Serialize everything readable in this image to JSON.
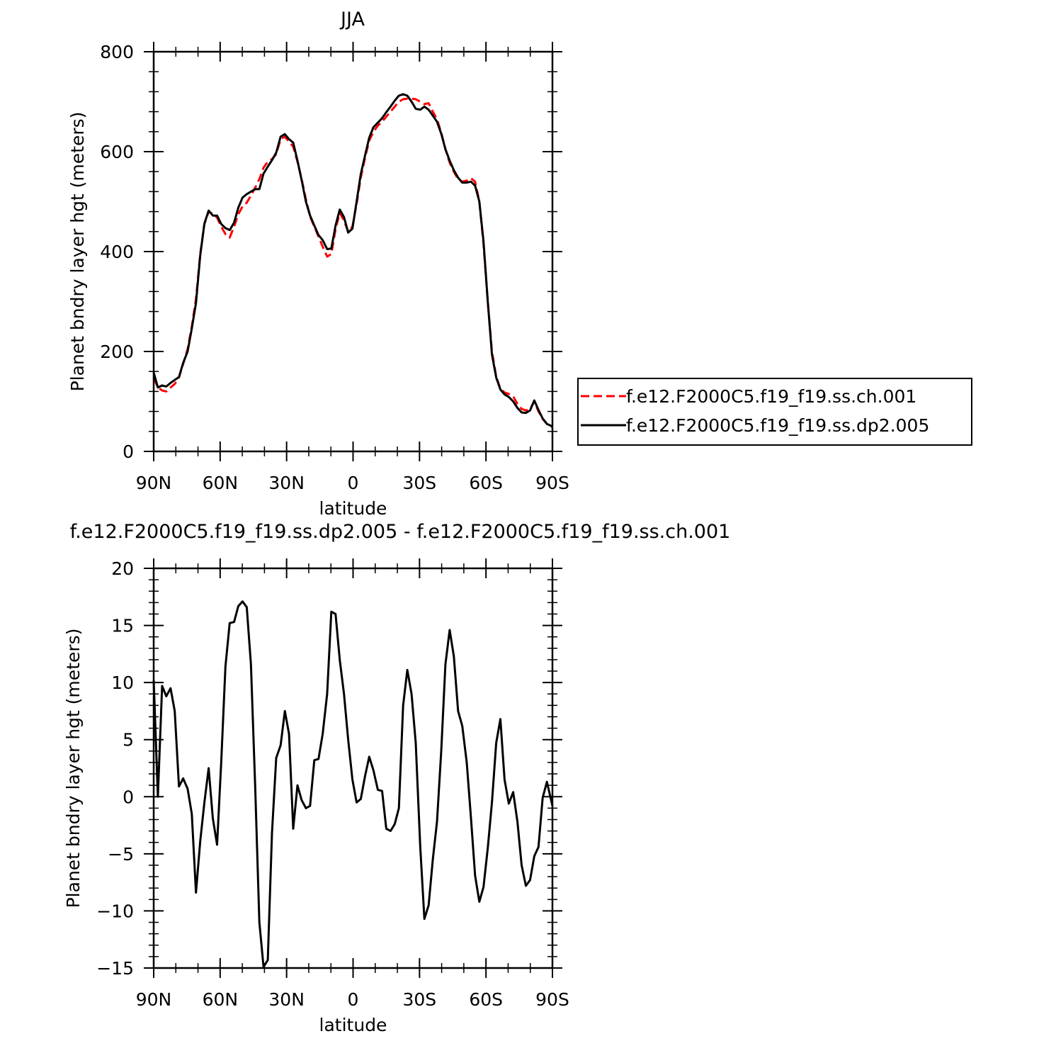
{
  "chart_data": [
    {
      "type": "line",
      "title": "JJA",
      "xlabel": "latitude",
      "ylabel": "Planet bndry layer hgt (meters)",
      "xlim": [
        90,
        -90
      ],
      "ylim": [
        0,
        800
      ],
      "xticks": [
        90,
        60,
        30,
        0,
        -30,
        -60,
        -90
      ],
      "xtick_labels": [
        "90N",
        "60N",
        "30N",
        "0",
        "30S",
        "60S",
        "90S"
      ],
      "yticks": [
        0,
        200,
        400,
        600,
        800
      ],
      "ytick_labels": [
        "0",
        "200",
        "400",
        "600",
        "800"
      ],
      "legend": "outside-right",
      "x": [
        90,
        88.1,
        86.2,
        84.3,
        82.4,
        80.5,
        78.6,
        76.7,
        74.7,
        72.8,
        70.9,
        69.0,
        67.1,
        65.2,
        63.3,
        61.4,
        59.5,
        57.6,
        55.7,
        53.7,
        51.8,
        49.9,
        48.0,
        46.1,
        44.2,
        42.3,
        40.4,
        38.5,
        36.6,
        34.7,
        32.7,
        30.8,
        28.9,
        27.0,
        25.1,
        23.2,
        21.3,
        19.4,
        17.5,
        15.6,
        13.7,
        11.7,
        9.8,
        7.9,
        6.0,
        4.1,
        2.2,
        0.3,
        -1.6,
        -3.5,
        -5.4,
        -7.3,
        -9.2,
        -11.2,
        -13.1,
        -15.0,
        -16.9,
        -18.8,
        -20.7,
        -22.6,
        -24.5,
        -26.4,
        -28.3,
        -30.3,
        -32.2,
        -34.1,
        -36.0,
        -37.9,
        -39.8,
        -41.7,
        -43.6,
        -45.5,
        -47.4,
        -49.3,
        -51.3,
        -53.2,
        -55.1,
        -57.0,
        -58.9,
        -60.8,
        -62.7,
        -64.6,
        -66.5,
        -68.4,
        -70.3,
        -72.3,
        -74.2,
        -76.1,
        -78.0,
        -79.9,
        -81.8,
        -83.7,
        -85.6,
        -87.5,
        -90
      ],
      "series": [
        {
          "name": "f.e12.F2000C5.f19_f19.ss.ch.001",
          "color": "#ff0000",
          "dash": "dashed",
          "values": [
            148,
            128,
            122,
            120,
            128,
            135,
            148,
            175,
            205,
            250,
            305,
            395,
            455,
            480,
            475,
            468,
            450,
            435,
            428,
            450,
            475,
            490,
            498,
            512,
            528,
            545,
            568,
            580,
            585,
            595,
            625,
            630,
            620,
            610,
            580,
            545,
            505,
            470,
            450,
            430,
            410,
            390,
            395,
            445,
            478,
            462,
            440,
            450,
            495,
            548,
            588,
            622,
            640,
            652,
            660,
            670,
            680,
            690,
            700,
            705,
            706,
            706,
            705,
            700,
            695,
            697,
            680,
            665,
            638,
            605,
            578,
            560,
            545,
            540,
            542,
            547,
            540,
            500,
            415,
            300,
            200,
            150,
            125,
            118,
            115,
            110,
            95,
            85,
            82,
            85,
            100,
            80,
            65,
            55,
            48
          ]
        },
        {
          "name": "f.e12.F2000C5.f19_f19.ss.dp2.005",
          "color": "#000000",
          "dash": "solid",
          "values": [
            158,
            128,
            132,
            130,
            137,
            143,
            149,
            177,
            200,
            246,
            297,
            392,
            456,
            482,
            472,
            472,
            455,
            447,
            443,
            458,
            488,
            508,
            515,
            520,
            525,
            525,
            556,
            570,
            583,
            598,
            630,
            635,
            625,
            618,
            582,
            543,
            500,
            472,
            452,
            433,
            423,
            405,
            406,
            452,
            484,
            469,
            438,
            446,
            500,
            555,
            592,
            628,
            649,
            658,
            667,
            679,
            690,
            702,
            712,
            715,
            712,
            700,
            686,
            684,
            690,
            684,
            672,
            660,
            636,
            605,
            582,
            563,
            548,
            538,
            538,
            540,
            532,
            500,
            420,
            300,
            194,
            148,
            124,
            114,
            109,
            100,
            87,
            78,
            77,
            82,
            102,
            83,
            66,
            55,
            50
          ]
        }
      ]
    },
    {
      "type": "line",
      "title": "f.e12.F2000C5.f19_f19.ss.dp2.005 - f.e12.F2000C5.f19_f19.ss.ch.001",
      "xlabel": "latitude",
      "ylabel": "Planet bndry layer hgt (meters)",
      "xlim": [
        90,
        -90
      ],
      "ylim": [
        -15,
        20
      ],
      "xticks": [
        90,
        60,
        30,
        0,
        -30,
        -60,
        -90
      ],
      "xtick_labels": [
        "90N",
        "60N",
        "30N",
        "0",
        "30S",
        "60S",
        "90S"
      ],
      "yticks": [
        -15,
        -10,
        -5,
        0,
        5,
        10,
        15,
        20
      ],
      "ytick_labels": [
        "−15",
        "−10",
        "−5",
        "0",
        "5",
        "10",
        "15",
        "20"
      ],
      "x": [
        90,
        88.1,
        86.2,
        84.3,
        82.4,
        80.5,
        78.6,
        76.7,
        74.7,
        72.8,
        70.9,
        69.0,
        67.1,
        65.2,
        63.3,
        61.4,
        59.5,
        57.6,
        55.7,
        53.7,
        51.8,
        49.9,
        48.0,
        46.1,
        44.2,
        42.3,
        40.4,
        38.5,
        36.6,
        34.7,
        32.7,
        30.8,
        28.9,
        27.0,
        25.1,
        23.2,
        21.3,
        19.4,
        17.5,
        15.6,
        13.7,
        11.7,
        9.8,
        7.9,
        6.0,
        4.1,
        2.2,
        0.3,
        -1.6,
        -3.5,
        -5.4,
        -7.3,
        -9.2,
        -11.2,
        -13.1,
        -15.0,
        -16.9,
        -18.8,
        -20.7,
        -22.6,
        -24.5,
        -26.4,
        -28.3,
        -30.3,
        -32.2,
        -34.1,
        -36.0,
        -37.9,
        -39.8,
        -41.7,
        -43.6,
        -45.5,
        -47.4,
        -49.3,
        -51.3,
        -53.2,
        -55.1,
        -57.0,
        -58.9,
        -60.8,
        -62.7,
        -64.6,
        -66.5,
        -68.4,
        -70.3,
        -72.3,
        -74.2,
        -76.1,
        -78.0,
        -79.9,
        -81.8,
        -83.7,
        -85.6,
        -87.5,
        -90
      ],
      "series": [
        {
          "color": "#000000",
          "values": [
            10.2,
            0.0,
            9.7,
            8.8,
            9.5,
            7.5,
            0.9,
            1.6,
            0.7,
            -1.5,
            -8.4,
            -3.9,
            -0.5,
            2.5,
            -1.9,
            -4.2,
            3.1,
            11.4,
            15.2,
            15.3,
            16.7,
            17.1,
            16.6,
            11.6,
            0.9,
            -11.0,
            -14.9,
            -14.3,
            -3.2,
            3.4,
            4.5,
            7.5,
            5.5,
            -2.8,
            1.0,
            -0.3,
            -1.0,
            -0.8,
            3.2,
            3.3,
            5.5,
            9.0,
            16.2,
            16.0,
            12.0,
            9.0,
            5.0,
            1.5,
            -0.5,
            -0.2,
            1.8,
            3.5,
            2.3,
            0.6,
            0.5,
            -2.8,
            -3.0,
            -2.4,
            -1.0,
            8.0,
            11.1,
            9.0,
            4.7,
            -4.3,
            -10.7,
            -9.5,
            -5.5,
            -2.2,
            4.0,
            11.6,
            14.6,
            12.3,
            7.5,
            6.2,
            3.0,
            -1.8,
            -6.9,
            -9.2,
            -7.9,
            -4.5,
            -0.5,
            4.7,
            6.8,
            1.5,
            -0.6,
            0.4,
            -2.2,
            -6.0,
            -7.8,
            -7.3,
            -5.2,
            -4.4,
            -0.1,
            1.3,
            -0.8
          ]
        }
      ]
    }
  ]
}
